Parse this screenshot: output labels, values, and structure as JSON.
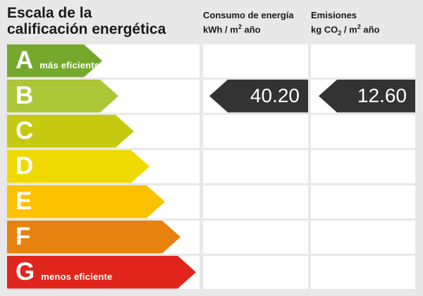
{
  "panel": {
    "background": "#e8e8e8",
    "cell_background": "#ffffff",
    "title_line1": "Escala de la",
    "title_line2": "calificación energética"
  },
  "columns": {
    "consumo": {
      "label": "Consumo de energía",
      "unit_pre": "kWh / m",
      "unit_sup": "2",
      "unit_post": " año"
    },
    "emisiones": {
      "label": "Emisiones",
      "unit_pre": "kg CO",
      "unit_sub": "2",
      "unit_mid": " / m",
      "unit_sup": "2",
      "unit_post": " año"
    }
  },
  "scale": {
    "rows": [
      {
        "letter": "A",
        "note": "más eficiente",
        "color": "#76a82d",
        "length": 135
      },
      {
        "letter": "B",
        "note": "",
        "color": "#adc637",
        "length": 158
      },
      {
        "letter": "C",
        "note": "",
        "color": "#c5ca10",
        "length": 180
      },
      {
        "letter": "D",
        "note": "",
        "color": "#eed900",
        "length": 202
      },
      {
        "letter": "E",
        "note": "",
        "color": "#fcc200",
        "length": 224
      },
      {
        "letter": "F",
        "note": "",
        "color": "#e8820e",
        "length": 246
      },
      {
        "letter": "G",
        "note": "menos eficiente",
        "color": "#e0261c",
        "length": 268
      }
    ]
  },
  "indicators": {
    "rating": "B",
    "consumo_value": "40.20",
    "emisiones_value": "12.60",
    "arrow_color": "#333333",
    "text_color": "#ffffff"
  },
  "chart_data": {
    "type": "bar",
    "orientation": "horizontal",
    "title": "Escala de la calificación energética",
    "categories": [
      "A",
      "B",
      "C",
      "D",
      "E",
      "F",
      "G"
    ],
    "values": [
      135,
      158,
      180,
      202,
      224,
      246,
      268
    ],
    "values_note": "decorative stepped bar lengths in pixels; no numeric axis shown",
    "bar_colors": [
      "#76a82d",
      "#adc637",
      "#c5ca10",
      "#eed900",
      "#fcc200",
      "#e8820e",
      "#e0261c"
    ],
    "annotations": [
      {
        "category": "A",
        "note": "más eficiente"
      },
      {
        "category": "G",
        "note": "menos eficiente"
      }
    ],
    "series": [
      {
        "name": "Consumo de energía (kWh / m² año)",
        "rating": "B",
        "value": 40.2
      },
      {
        "name": "Emisiones (kg CO₂ / m² año)",
        "rating": "B",
        "value": 12.6
      }
    ],
    "legend": "none",
    "grid": "off"
  }
}
